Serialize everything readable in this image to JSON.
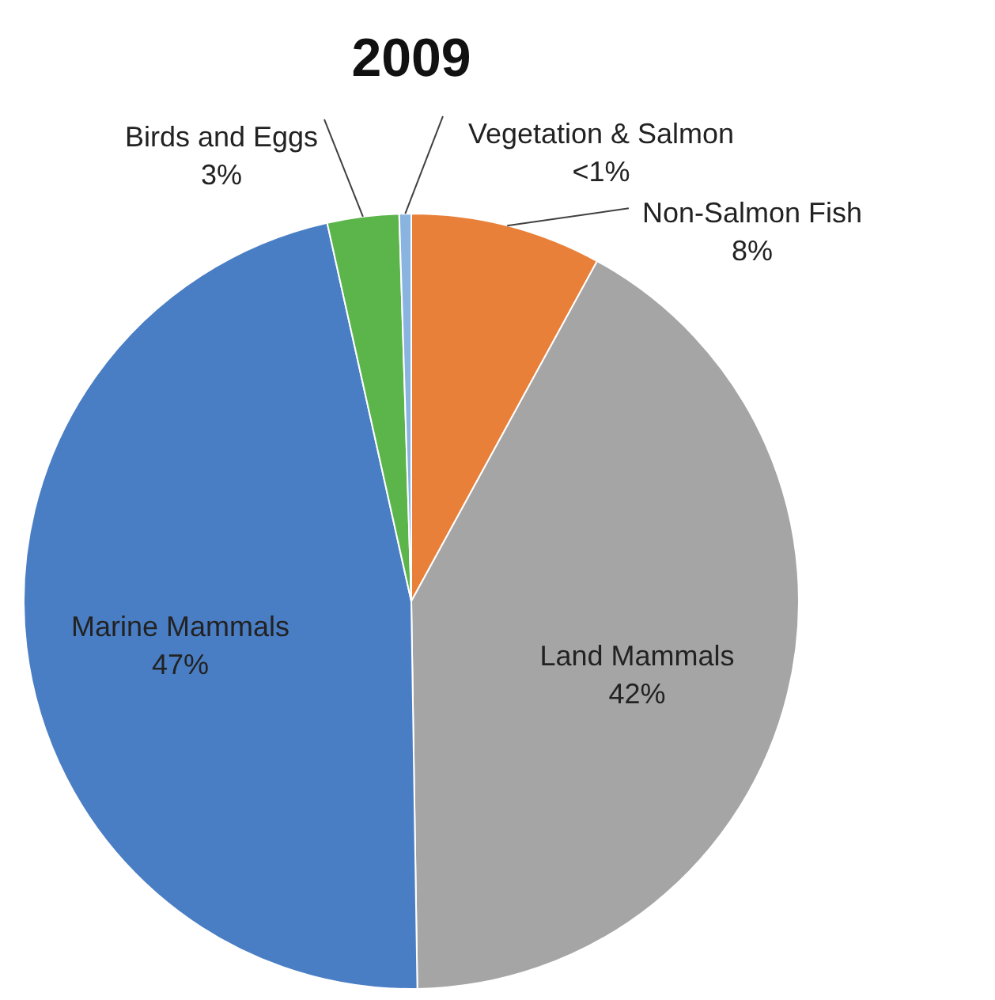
{
  "chart_data": {
    "type": "pie",
    "title": "2009",
    "categories": [
      "Non-Salmon Fish",
      "Land Mammals",
      "Marine Mammals",
      "Birds and Eggs",
      "Vegetation & Salmon"
    ],
    "values": [
      8,
      42,
      47,
      3,
      0.5
    ],
    "value_labels": [
      "8%",
      "42%",
      "47%",
      "3%",
      "<1%"
    ],
    "colors": [
      "#e8803a",
      "#a5a5a5",
      "#4a7ec4",
      "#5cb54a",
      "#8ab4e0"
    ]
  }
}
